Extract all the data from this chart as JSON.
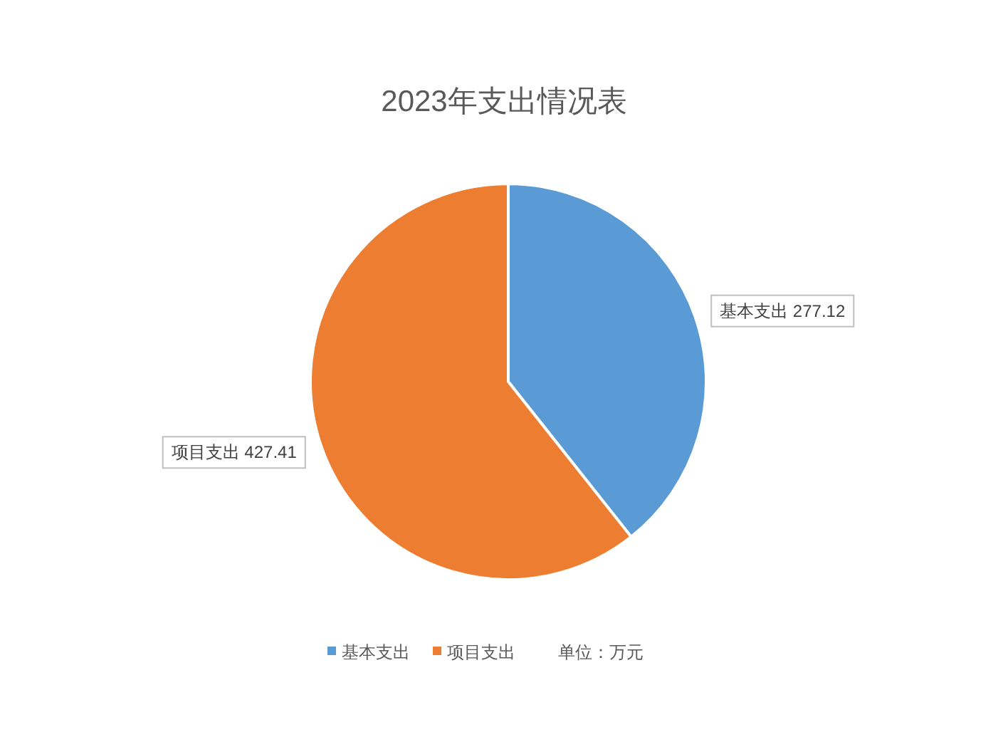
{
  "chart_data": {
    "type": "pie",
    "title": "2023年支出情况表",
    "categories": [
      "基本支出",
      "项目支出"
    ],
    "values": [
      277.12,
      427.41
    ],
    "colors": [
      "#5b9bd5",
      "#ed7d31"
    ],
    "value_labels": [
      "基本支出 277.12",
      "项目支出 427.41"
    ],
    "legend": "bottom",
    "annotations": [
      "单位：万元"
    ]
  }
}
